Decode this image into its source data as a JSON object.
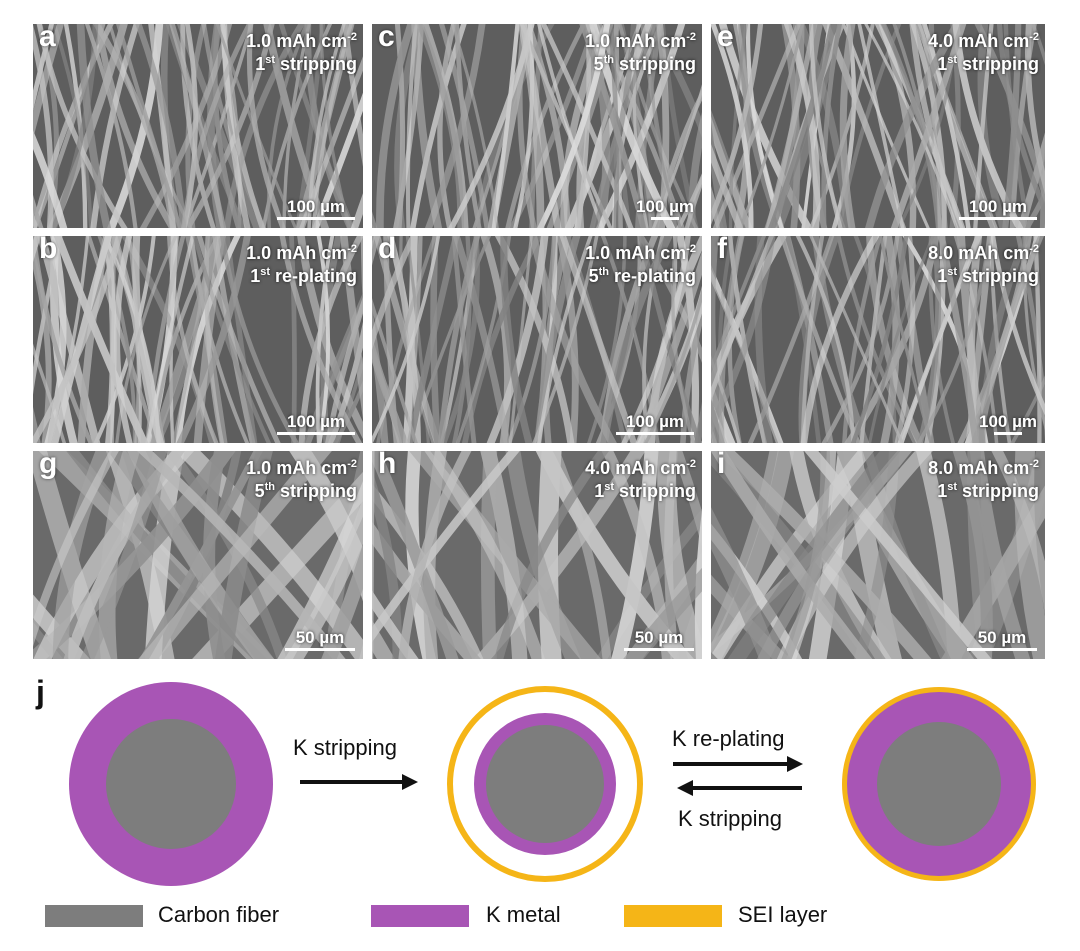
{
  "figure": {
    "panels": [
      {
        "id": "a",
        "letter": "a",
        "line1": "1.0 mAh cm",
        "exp": "-2",
        "ord_num": "1",
        "ord_suffix": "st",
        "line2": " stripping",
        "scale": "100 µm"
      },
      {
        "id": "b",
        "letter": "b",
        "line1": "1.0 mAh cm",
        "exp": "-2",
        "ord_num": "1",
        "ord_suffix": "st",
        "line2": " re-plating",
        "scale": "100 µm"
      },
      {
        "id": "c",
        "letter": "c",
        "line1": "1.0 mAh cm",
        "exp": "-2",
        "ord_num": "5",
        "ord_suffix": "th",
        "line2": " stripping",
        "scale": "100 µm"
      },
      {
        "id": "d",
        "letter": "d",
        "line1": "1.0 mAh cm",
        "exp": "-2",
        "ord_num": "5",
        "ord_suffix": "th",
        "line2": " re-plating",
        "scale": "100 µm"
      },
      {
        "id": "e",
        "letter": "e",
        "line1": "4.0 mAh cm",
        "exp": "-2",
        "ord_num": "1",
        "ord_suffix": "st",
        "line2": " stripping",
        "scale": "100 µm"
      },
      {
        "id": "f",
        "letter": "f",
        "line1": "8.0 mAh cm",
        "exp": "-2",
        "ord_num": "1",
        "ord_suffix": "st",
        "line2": " stripping",
        "scale": "100 µm"
      },
      {
        "id": "g",
        "letter": "g",
        "line1": "1.0 mAh cm",
        "exp": "-2",
        "ord_num": "5",
        "ord_suffix": "th",
        "line2": " stripping",
        "scale": "50 µm"
      },
      {
        "id": "h",
        "letter": "h",
        "line1": "4.0 mAh cm",
        "exp": "-2",
        "ord_num": "1",
        "ord_suffix": "st",
        "line2": " stripping",
        "scale": "50 µm"
      },
      {
        "id": "i",
        "letter": "i",
        "line1": "8.0 mAh cm",
        "exp": "-2",
        "ord_num": "1",
        "ord_suffix": "st",
        "line2": " stripping",
        "scale": "50 µm"
      }
    ],
    "schematic": {
      "letter": "j",
      "arrow1_label": "K stripping",
      "arrow2_top_label": "K re-plating",
      "arrow2_bottom_label": "K stripping"
    },
    "legend": [
      {
        "label": "Carbon fiber",
        "color": "#7d7d7d"
      },
      {
        "label": "K metal",
        "color": "#a855b5"
      },
      {
        "label": "SEI layer",
        "color": "#f5b517"
      }
    ]
  }
}
